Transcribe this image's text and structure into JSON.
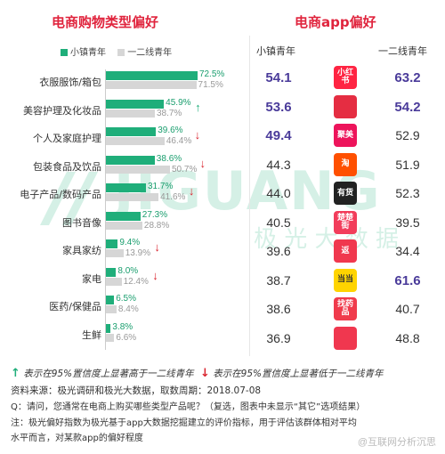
{
  "left_title": "电商购物类型偏好",
  "right_title": "电商app偏好",
  "colors": {
    "accent": "#e0243d",
    "small_town": "#1fae7a",
    "tier12": "#d6d6d6",
    "highlight": "#4a3b9a",
    "down_arrow": "#d9252f"
  },
  "legend": {
    "small_town": "小镇青年",
    "tier12": "一二线青年"
  },
  "chart_data": {
    "type": "bar",
    "orientation": "horizontal",
    "title": "电商购物类型偏好",
    "categories": [
      "衣服服饰/箱包",
      "美容护理及化妆品",
      "个人及家庭护理",
      "包装食品及饮品",
      "电子产品/数码产品",
      "图书音像",
      "家具家纺",
      "家电",
      "医药/保健品",
      "生鲜"
    ],
    "series": [
      {
        "name": "小镇青年",
        "values": [
          72.5,
          45.9,
          39.6,
          38.6,
          31.7,
          27.3,
          9.4,
          8.0,
          6.5,
          3.8
        ]
      },
      {
        "name": "一二线青年",
        "values": [
          71.5,
          38.7,
          46.4,
          50.7,
          41.6,
          28.8,
          13.9,
          12.4,
          8.4,
          6.6
        ]
      }
    ],
    "significance": [
      "none",
      "up",
      "down",
      "down",
      "down",
      "none",
      "down",
      "down",
      "none",
      "none"
    ],
    "xlim": [
      0,
      100
    ],
    "legend_position": "top"
  },
  "app_table": {
    "col_small": "小镇青年",
    "col_tier": "一二线青年",
    "rows": [
      {
        "app": "小红书",
        "icon": "xiaohongshu-icon",
        "color": "#ff2442",
        "small": "54.1",
        "tier": "63.2",
        "small_hi": true,
        "tier_hi": true
      },
      {
        "app": "",
        "icon": "shell-icon",
        "color": "#e52d42",
        "small": "53.6",
        "tier": "54.2",
        "small_hi": true,
        "tier_hi": true
      },
      {
        "app": "聚美",
        "icon": "jumei-icon",
        "color": "#ed145b",
        "small": "49.4",
        "tier": "52.9",
        "small_hi": true,
        "tier_hi": false
      },
      {
        "app": "淘",
        "icon": "taobao-icon",
        "color": "#ff5000",
        "small": "44.3",
        "tier": "51.9",
        "small_hi": false,
        "tier_hi": false
      },
      {
        "app": "有货",
        "icon": "yohuo-icon",
        "color": "#222222",
        "small": "44.0",
        "tier": "52.3",
        "small_hi": false,
        "tier_hi": false
      },
      {
        "app": "楚楚街",
        "icon": "chuchujie-icon",
        "color": "#f23d5b",
        "small": "40.5",
        "tier": "39.5",
        "small_hi": false,
        "tier_hi": false
      },
      {
        "app": "返",
        "icon": "fan-icon",
        "color": "#f0384e",
        "small": "39.6",
        "tier": "34.4",
        "small_hi": false,
        "tier_hi": false
      },
      {
        "app": "当当",
        "icon": "dangdang-icon",
        "color": "#ffd400",
        "small": "38.7",
        "tier": "61.6",
        "small_hi": false,
        "tier_hi": true
      },
      {
        "app": "找药品",
        "icon": "zhaoyaoping-icon",
        "color": "#f03b4c",
        "small": "38.6",
        "tier": "40.7",
        "small_hi": false,
        "tier_hi": false
      },
      {
        "app": "",
        "icon": "pig-icon",
        "color": "#f0374f",
        "small": "36.9",
        "tier": "48.8",
        "small_hi": false,
        "tier_hi": false
      }
    ]
  },
  "watermark": {
    "brand": "JIGUANG",
    "cn": "极 光 大 数 据",
    "weibo": "@互联网分析沉思"
  },
  "footnotes": {
    "up_note": "表示在95%置信度上显著高于一二线青年",
    "down_note": "表示在95%置信度上显著低于一二线青年",
    "source": "资料来源：极光调研和极光大数据，取数周期：2018.07-08",
    "question": "Q：请问，您通常在电商上购买哪些类型产品呢？（复选，图表中未显示“其它”选项结果）",
    "note1": "注：极光偏好指数为极光基于app大数据挖掘建立的评价指标，用于评估该群体相对平均",
    "note2": "水平而言，对某款app的偏好程度"
  }
}
